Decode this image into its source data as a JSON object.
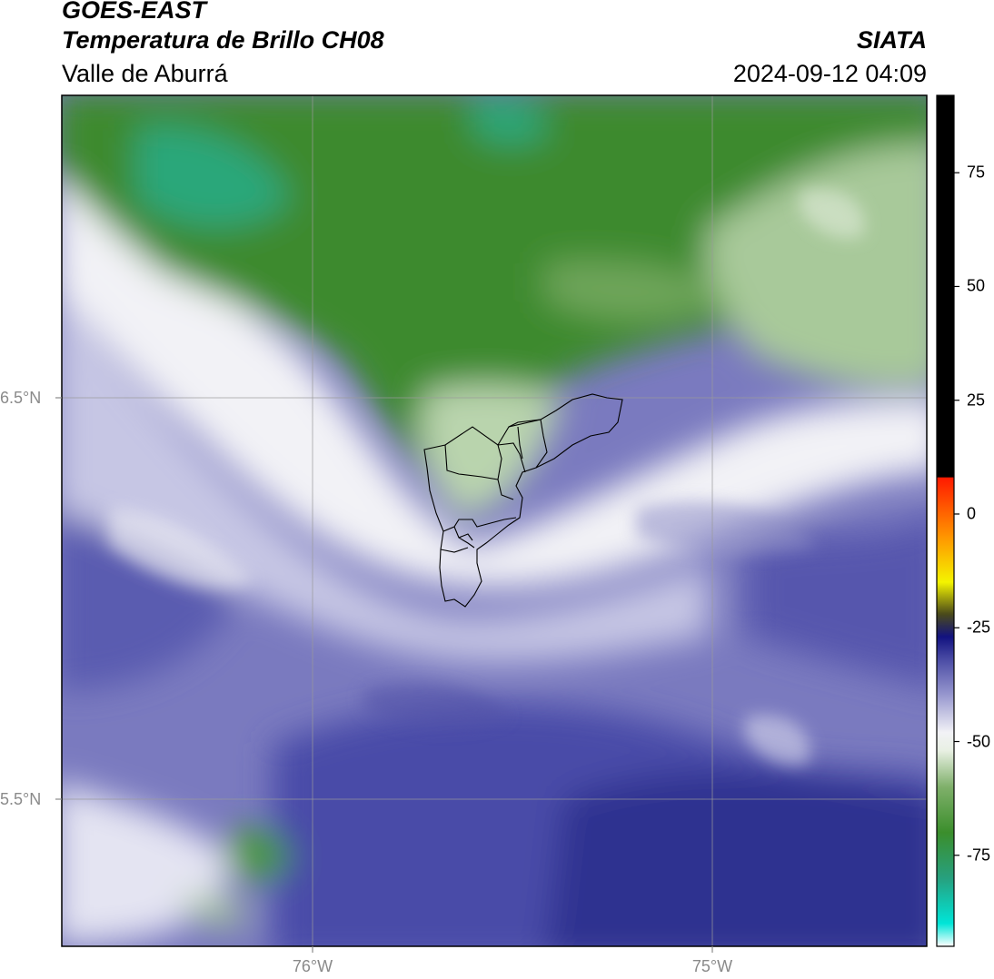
{
  "header": {
    "satellite": "GOES-EAST",
    "product": "Temperatura de Brillo CH08",
    "region": "Valle de Aburrá",
    "organization": "SIATA",
    "datetime": "2024-09-12 04:09"
  },
  "axes": {
    "lat_labels": [
      "6.5°N",
      "5.5°N"
    ],
    "lon_labels": [
      "76°W",
      "75°W"
    ]
  },
  "colorbar": {
    "ticks": [
      "75",
      "50",
      "25",
      "0",
      "-25",
      "-50",
      "-75"
    ],
    "range": [
      -95,
      92
    ],
    "stops": [
      {
        "v": -95,
        "c": "#ffffff"
      },
      {
        "v": -90,
        "c": "#00e5d8"
      },
      {
        "v": -80,
        "c": "#27a07e"
      },
      {
        "v": -70,
        "c": "#3b8e2c"
      },
      {
        "v": -60,
        "c": "#7fb06a"
      },
      {
        "v": -52,
        "c": "#e8f0e3"
      },
      {
        "v": -48,
        "c": "#f2f2f6"
      },
      {
        "v": -40,
        "c": "#9a9ad0"
      },
      {
        "v": -32,
        "c": "#4b4ca5"
      },
      {
        "v": -27,
        "c": "#121280"
      },
      {
        "v": -22,
        "c": "#4a4a1a"
      },
      {
        "v": -15,
        "c": "#f4f400"
      },
      {
        "v": -5,
        "c": "#ff9500"
      },
      {
        "v": 8,
        "c": "#ff1a00"
      },
      {
        "v": 8.1,
        "c": "#000000"
      },
      {
        "v": 92,
        "c": "#000000"
      }
    ]
  },
  "map": {
    "colors": {
      "green_dark": "#3e8a2e",
      "teal": "#2aa77a",
      "green_light": "#a8c99a",
      "white": "#f4f4f8",
      "lavender": "#b4b4dc",
      "purple": "#6e6eb8",
      "blue_dark": "#2e3090",
      "grid": "#9a9a9a",
      "boundary": "#000000"
    }
  }
}
